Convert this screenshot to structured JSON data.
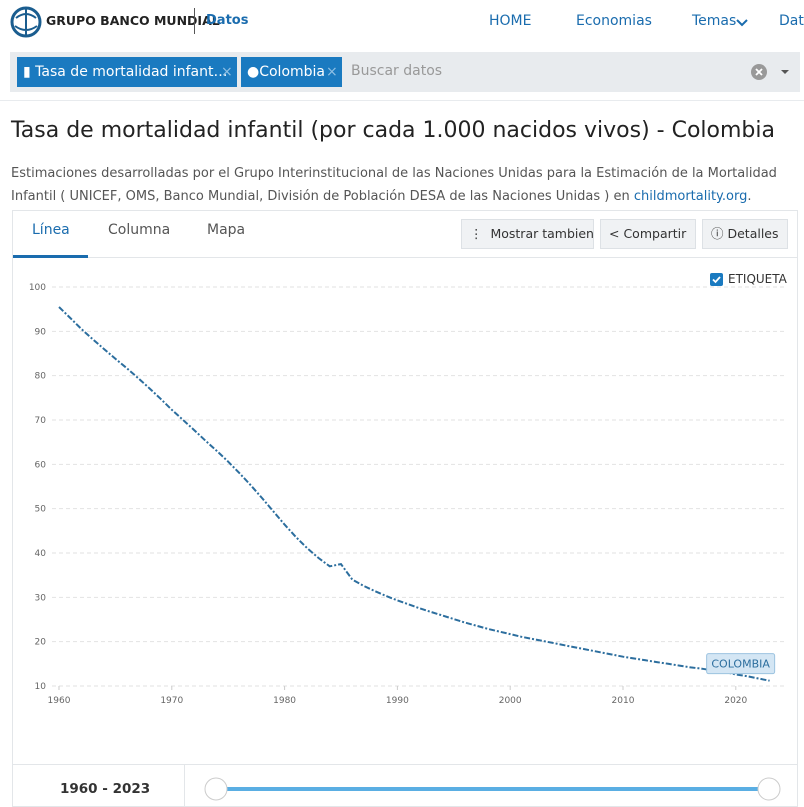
{
  "header": {
    "brand": "GRUPO BANCO MUNDIAL",
    "section": "Datos",
    "nav": [
      "HOME",
      "Economias",
      "Temas",
      "Dato"
    ]
  },
  "search": {
    "chips": [
      "Tasa de mortalidad infant…",
      "Colombia"
    ],
    "placeholder": "Buscar datos"
  },
  "title": "Tasa de mortalidad infantil (por cada 1.000 nacidos vivos) - Colombia",
  "description": {
    "text": "Estimaciones desarrolladas por el Grupo Interinstitucional de las Naciones Unidas para la Estimación de la Mortalidad Infantil ( UNICEF, OMS, Banco Mundial, División de Población DESA de las Naciones Unidas ) en",
    "link": "childmortality.org",
    "end": "."
  },
  "tabs": [
    "Línea",
    "Columna",
    "Mapa"
  ],
  "actions": [
    "Mostrar tambien",
    "Compartir",
    "Detalles"
  ],
  "label_toggle": "ETIQUETA",
  "chart_data": {
    "type": "line",
    "x": [
      1960,
      1961,
      1962,
      1963,
      1964,
      1965,
      1966,
      1967,
      1968,
      1969,
      1970,
      1971,
      1972,
      1973,
      1974,
      1975,
      1976,
      1977,
      1978,
      1979,
      1980,
      1981,
      1982,
      1983,
      1984,
      1985,
      1986,
      1987,
      1988,
      1989,
      1990,
      1991,
      1992,
      1993,
      1994,
      1995,
      1996,
      1997,
      1998,
      1999,
      2000,
      2001,
      2002,
      2003,
      2004,
      2005,
      2006,
      2007,
      2008,
      2009,
      2010,
      2011,
      2012,
      2013,
      2014,
      2015,
      2016,
      2017,
      2018,
      2019,
      2020,
      2021,
      2022,
      2023
    ],
    "series": [
      {
        "name": "COLOMBIA",
        "color": "#2c6e9e",
        "values": [
          95.5,
          93,
          90.5,
          88.2,
          86,
          83.8,
          81.7,
          79.5,
          77.2,
          74.8,
          72.3,
          70,
          67.7,
          65.3,
          63,
          60.6,
          58,
          55.3,
          52.4,
          49.4,
          46.4,
          43.6,
          41.1,
          38.9,
          37,
          37.5,
          34,
          32.6,
          31.4,
          30.3,
          29.3,
          28.4,
          27.5,
          26.7,
          25.9,
          25.1,
          24.3,
          23.6,
          22.9,
          22.3,
          21.7,
          21.1,
          20.6,
          20.1,
          19.6,
          19.1,
          18.6,
          18.1,
          17.6,
          17.1,
          16.6,
          16.2,
          15.8,
          15.4,
          15,
          14.6,
          14.2,
          13.9,
          13.5,
          13.2,
          12.6,
          12.2,
          11.7,
          11.2
        ]
      }
    ],
    "xlim": [
      1959,
      2025
    ],
    "xticks": [
      1960,
      1970,
      1980,
      1990,
      2000,
      2010,
      2020
    ],
    "ylim": [
      10,
      100
    ],
    "yticks": [
      10,
      20,
      30,
      40,
      50,
      60,
      70,
      80,
      90,
      100
    ],
    "grid": true
  },
  "range": {
    "start": "1960",
    "separator": "-",
    "end": "2023"
  }
}
